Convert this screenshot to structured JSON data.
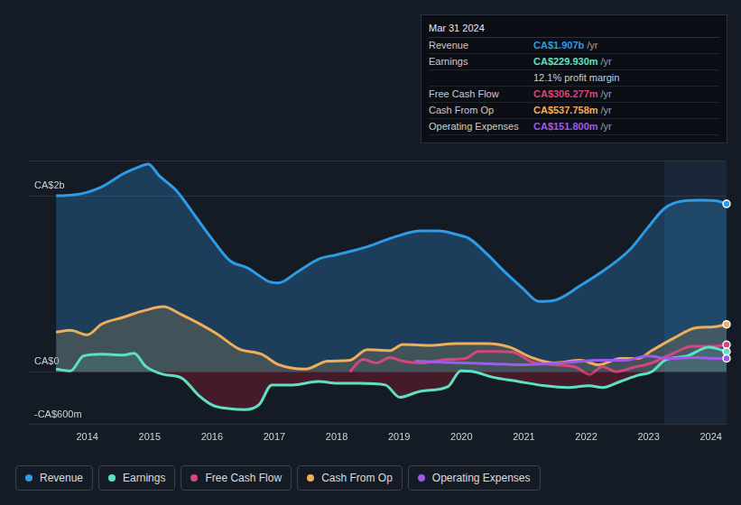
{
  "chart_data": {
    "type": "line",
    "xlim": [
      2013.05,
      2024.25
    ],
    "xticks": [
      2014,
      2015,
      2016,
      2017,
      2018,
      2019,
      2020,
      2021,
      2022,
      2023,
      2024
    ],
    "ylim": [
      -600,
      2400
    ],
    "yticks": [
      {
        "value": -600,
        "label": "-CA$600m"
      },
      {
        "value": 0,
        "label": "CA$0"
      },
      {
        "value": 2000,
        "label": "CA$2b"
      }
    ],
    "grid": true,
    "legend": "bottom",
    "shaded_region": [
      2023.25,
      2024.25
    ],
    "series": [
      {
        "name": "Revenue",
        "color": "#2d9be5",
        "x": [
          2013.5,
          2013.8,
          2014.23,
          2014.58,
          2014.8,
          2014.98,
          2015.15,
          2015.44,
          2015.72,
          2016.01,
          2016.29,
          2016.57,
          2016.72,
          2016.93,
          2017.07,
          2017.36,
          2017.71,
          2018.0,
          2018.49,
          2018.92,
          2019.35,
          2019.63,
          2019.92,
          2020.13,
          2020.42,
          2020.7,
          2020.98,
          2021.24,
          2021.48,
          2021.91,
          2022.34,
          2022.69,
          2022.98,
          2023.26,
          2023.54,
          2023.83,
          2024.11,
          2024.25
        ],
        "values": [
          2000,
          2010,
          2100,
          2250,
          2320,
          2360,
          2230,
          2050,
          1780,
          1500,
          1260,
          1180,
          1110,
          1020,
          1010,
          1130,
          1280,
          1330,
          1420,
          1530,
          1600,
          1600,
          1560,
          1510,
          1330,
          1130,
          950,
          800,
          810,
          980,
          1180,
          1380,
          1630,
          1860,
          1940,
          1950,
          1940,
          1907
        ]
      },
      {
        "name": "Earnings",
        "color": "#5fe0c4",
        "x": [
          2013.5,
          2013.73,
          2013.94,
          2014.23,
          2014.58,
          2014.75,
          2014.94,
          2015.22,
          2015.51,
          2015.79,
          2016.01,
          2016.29,
          2016.53,
          2016.76,
          2016.96,
          2017.29,
          2017.71,
          2018.0,
          2018.35,
          2018.78,
          2019.01,
          2019.35,
          2019.78,
          2019.99,
          2020.2,
          2020.49,
          2020.91,
          2021.34,
          2021.7,
          2022.05,
          2022.26,
          2022.55,
          2022.83,
          2023.05,
          2023.26,
          2023.62,
          2023.97,
          2024.25
        ],
        "values": [
          30,
          10,
          180,
          200,
          190,
          210,
          60,
          -30,
          -70,
          -270,
          -380,
          -420,
          -430,
          -370,
          -150,
          -150,
          -110,
          -130,
          -130,
          -150,
          -290,
          -220,
          -170,
          10,
          0,
          -60,
          -110,
          -160,
          -180,
          -160,
          -180,
          -110,
          -40,
          0,
          130,
          180,
          280,
          230
        ]
      },
      {
        "name": "Free Cash Flow",
        "color": "#d4467d",
        "x": [
          2018.21,
          2018.42,
          2018.64,
          2018.85,
          2019.06,
          2019.35,
          2019.78,
          2020.06,
          2020.27,
          2020.56,
          2020.84,
          2021.13,
          2021.48,
          2021.84,
          2022.05,
          2022.26,
          2022.48,
          2022.76,
          2023.05,
          2023.4,
          2023.69,
          2024.04,
          2024.25
        ],
        "values": [
          0,
          140,
          100,
          160,
          120,
          100,
          140,
          150,
          230,
          230,
          220,
          110,
          80,
          50,
          -30,
          60,
          0,
          50,
          100,
          210,
          290,
          290,
          306
        ]
      },
      {
        "name": "Cash From Op",
        "color": "#f0ad5a",
        "x": [
          2013.5,
          2013.73,
          2014.0,
          2014.23,
          2014.58,
          2014.94,
          2015.22,
          2015.51,
          2015.79,
          2016.08,
          2016.43,
          2016.79,
          2017.07,
          2017.5,
          2017.85,
          2018.21,
          2018.49,
          2018.85,
          2019.06,
          2019.49,
          2019.92,
          2020.42,
          2020.77,
          2021.13,
          2021.48,
          2021.91,
          2022.19,
          2022.55,
          2022.83,
          2023.05,
          2023.4,
          2023.76,
          2024.04,
          2024.25
        ],
        "values": [
          450,
          470,
          420,
          540,
          620,
          700,
          740,
          650,
          550,
          430,
          260,
          200,
          80,
          30,
          120,
          130,
          250,
          240,
          310,
          300,
          320,
          320,
          280,
          160,
          100,
          130,
          80,
          150,
          150,
          240,
          380,
          500,
          510,
          538
        ]
      },
      {
        "name": "Operating Expenses",
        "color": "#9c5ce8",
        "x": [
          2019.25,
          2019.63,
          2020.06,
          2020.49,
          2020.91,
          2021.34,
          2021.77,
          2022.19,
          2022.62,
          2022.98,
          2023.33,
          2023.76,
          2024.04,
          2024.25
        ],
        "values": [
          120,
          110,
          100,
          90,
          80,
          90,
          110,
          130,
          130,
          180,
          150,
          160,
          150,
          152
        ]
      }
    ],
    "tooltip": {
      "title": "Mar 31 2024",
      "rows": [
        {
          "label": "Revenue",
          "value": "CA$1.907b",
          "unit": "/yr"
        },
        {
          "label": "Earnings",
          "value": "CA$229.930m",
          "unit": "/yr"
        },
        {
          "note": "12.1% profit margin"
        },
        {
          "label": "Free Cash Flow",
          "value": "CA$306.277m",
          "unit": "/yr"
        },
        {
          "label": "Cash From Op",
          "value": "CA$537.758m",
          "unit": "/yr"
        },
        {
          "label": "Operating Expenses",
          "value": "CA$151.800m",
          "unit": "/yr"
        }
      ]
    }
  }
}
